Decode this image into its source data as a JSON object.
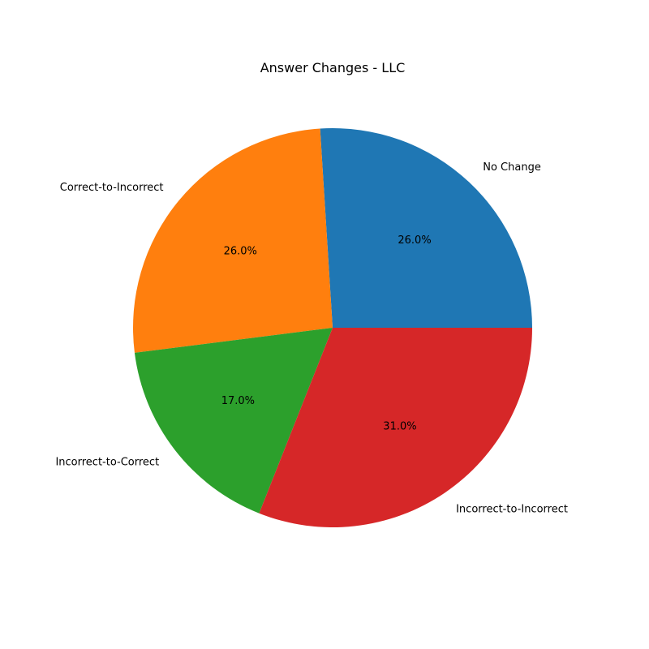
{
  "chart_data": {
    "type": "pie",
    "title": "Answer Changes - LLC",
    "slices": [
      {
        "label": "No Change",
        "value": 26.0,
        "pct_label": "26.0%",
        "color": "#1f77b4"
      },
      {
        "label": "Correct-to-Incorrect",
        "value": 26.0,
        "pct_label": "26.0%",
        "color": "#ff7f0e"
      },
      {
        "label": "Incorrect-to-Correct",
        "value": 17.0,
        "pct_label": "17.0%",
        "color": "#2ca02c"
      },
      {
        "label": "Incorrect-to-Incorrect",
        "value": 31.0,
        "pct_label": "31.0%",
        "color": "#d62728"
      }
    ],
    "start_angle_deg": 0,
    "direction": "counterclockwise",
    "legend": "none"
  }
}
